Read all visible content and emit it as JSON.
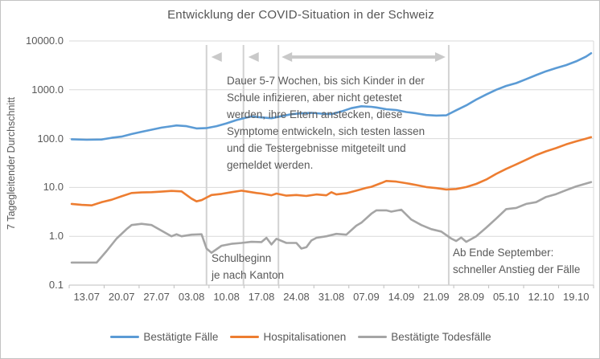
{
  "title": "Entwicklung der COVID-Situation in der Schweiz",
  "y_axis": {
    "title": "7 Tagegleitender Durchschnitt",
    "tick_labels": [
      "10000.0",
      "1000.0",
      "100.0",
      "10.0",
      "1.0",
      "0.1"
    ]
  },
  "x_axis": {
    "tick_labels": [
      "13.07",
      "20.07",
      "27.07",
      "03.08",
      "10.08",
      "17.08",
      "24.08",
      "31.08",
      "07.09",
      "14.09",
      "21.09",
      "28.09",
      "05.10",
      "12.10",
      "19.10"
    ]
  },
  "annotations": {
    "duration_text": "Dauer 5-7 Wochen, bis sich Kinder in der\nSchule infizieren, aber nicht getestet\nwerden, ihre Eltern anstecken, diese\nSymptome entwickeln, sich testen lassen\nund die Testergebnisse mitgeteilt und\ngemeldet werden.",
    "school_start_text": "Schulbeginn\nje nach Kanton",
    "september_text": "Ab Ende September:\nschneller Anstieg der Fälle"
  },
  "colors": {
    "cases": "#5B9BD5",
    "hospitalisations": "#ED7D31",
    "deaths": "#A5A5A5",
    "gridline": "#D9D9D9",
    "axis": "#BFBFBF",
    "marker_line": "#D2D2D2",
    "arrow": "#C9C9C9",
    "text": "#595959"
  },
  "chart_data": {
    "type": "line",
    "title": "Entwicklung der COVID-Situation in der Schweiz",
    "xlabel": "",
    "ylabel": "7 Tagegleitender Durchschnitt",
    "y_scale": "log",
    "ylim": [
      0.1,
      10000
    ],
    "grid": "horizontal",
    "legend_position": "bottom",
    "x_unit": "days since 13.07 (daily data, 13.07 to ~25.10)",
    "x_tick_labels": [
      "13.07",
      "20.07",
      "27.07",
      "03.08",
      "10.08",
      "17.08",
      "24.08",
      "31.08",
      "07.09",
      "14.09",
      "21.09",
      "28.09",
      "05.10",
      "12.10",
      "19.10"
    ],
    "vertical_marker_days": [
      27,
      34.4,
      41.4,
      75.5
    ],
    "series": [
      {
        "name": "Bestätigte Fälle",
        "color": "#5B9BD5",
        "points": [
          [
            0,
            97
          ],
          [
            3,
            95
          ],
          [
            6,
            96
          ],
          [
            8,
            104
          ],
          [
            10,
            110
          ],
          [
            12,
            124
          ],
          [
            14,
            138
          ],
          [
            16,
            152
          ],
          [
            18,
            168
          ],
          [
            20,
            180
          ],
          [
            21,
            186
          ],
          [
            23,
            180
          ],
          [
            25,
            162
          ],
          [
            27,
            164
          ],
          [
            29,
            180
          ],
          [
            31,
            205
          ],
          [
            33,
            240
          ],
          [
            35,
            270
          ],
          [
            36,
            283
          ],
          [
            38,
            272
          ],
          [
            40,
            262
          ],
          [
            42,
            288
          ],
          [
            44,
            316
          ],
          [
            46,
            330
          ],
          [
            48,
            337
          ],
          [
            50,
            325
          ],
          [
            52,
            318
          ],
          [
            54,
            360
          ],
          [
            56,
            420
          ],
          [
            58,
            460
          ],
          [
            60,
            448
          ],
          [
            61,
            435
          ],
          [
            63,
            400
          ],
          [
            65,
            385
          ],
          [
            67,
            350
          ],
          [
            69,
            330
          ],
          [
            71,
            305
          ],
          [
            73,
            297
          ],
          [
            75,
            300
          ],
          [
            77,
            380
          ],
          [
            79,
            480
          ],
          [
            81,
            630
          ],
          [
            83,
            800
          ],
          [
            85,
            1000
          ],
          [
            87,
            1200
          ],
          [
            89,
            1370
          ],
          [
            91,
            1650
          ],
          [
            93,
            2000
          ],
          [
            95,
            2400
          ],
          [
            97,
            2780
          ],
          [
            99,
            3200
          ],
          [
            101,
            3820
          ],
          [
            103,
            4800
          ],
          [
            104,
            5600
          ]
        ]
      },
      {
        "name": "Hospitalisationen",
        "color": "#ED7D31",
        "points": [
          [
            0,
            4.6
          ],
          [
            2,
            4.4
          ],
          [
            4,
            4.3
          ],
          [
            6,
            5.0
          ],
          [
            8,
            5.6
          ],
          [
            10,
            6.6
          ],
          [
            12,
            7.7
          ],
          [
            14,
            7.9
          ],
          [
            16,
            8.0
          ],
          [
            18,
            8.2
          ],
          [
            20,
            8.5
          ],
          [
            22,
            8.3
          ],
          [
            23,
            7.0
          ],
          [
            24,
            5.9
          ],
          [
            25,
            5.2
          ],
          [
            26,
            5.5
          ],
          [
            27,
            6.2
          ],
          [
            28,
            7.0
          ],
          [
            30,
            7.4
          ],
          [
            32,
            8.0
          ],
          [
            34,
            8.6
          ],
          [
            35,
            8.3
          ],
          [
            37,
            7.7
          ],
          [
            38,
            7.5
          ],
          [
            40,
            6.9
          ],
          [
            41,
            7.5
          ],
          [
            43,
            6.8
          ],
          [
            45,
            7.0
          ],
          [
            47,
            6.7
          ],
          [
            49,
            7.2
          ],
          [
            51,
            6.9
          ],
          [
            52,
            8.0
          ],
          [
            53,
            7.2
          ],
          [
            55,
            7.6
          ],
          [
            57,
            8.6
          ],
          [
            59,
            9.8
          ],
          [
            60,
            10.3
          ],
          [
            62,
            12.3
          ],
          [
            63,
            13.6
          ],
          [
            65,
            13.2
          ],
          [
            67,
            12.2
          ],
          [
            69,
            11.2
          ],
          [
            71,
            10.2
          ],
          [
            73,
            9.7
          ],
          [
            75,
            9.1
          ],
          [
            77,
            9.3
          ],
          [
            79,
            10.2
          ],
          [
            81,
            11.8
          ],
          [
            83,
            14.5
          ],
          [
            85,
            19
          ],
          [
            87,
            24
          ],
          [
            89,
            29.6
          ],
          [
            91,
            37
          ],
          [
            93,
            46
          ],
          [
            95,
            55
          ],
          [
            97,
            64
          ],
          [
            99,
            76
          ],
          [
            101,
            88
          ],
          [
            103,
            100
          ],
          [
            104,
            107
          ]
        ]
      },
      {
        "name": "Bestätigte Todesfälle",
        "color": "#A5A5A5",
        "points": [
          [
            0,
            0.29
          ],
          [
            3,
            0.29
          ],
          [
            5,
            0.29
          ],
          [
            7,
            0.5
          ],
          [
            9,
            0.9
          ],
          [
            11,
            1.4
          ],
          [
            12,
            1.7
          ],
          [
            14,
            1.8
          ],
          [
            16,
            1.7
          ],
          [
            18,
            1.3
          ],
          [
            20,
            1.0
          ],
          [
            21,
            1.1
          ],
          [
            22,
            1.0
          ],
          [
            24,
            1.08
          ],
          [
            26,
            1.1
          ],
          [
            27,
            0.56
          ],
          [
            28,
            0.46
          ],
          [
            30,
            0.64
          ],
          [
            32,
            0.7
          ],
          [
            34,
            0.73
          ],
          [
            36,
            0.77
          ],
          [
            38,
            0.76
          ],
          [
            39,
            0.93
          ],
          [
            40,
            0.68
          ],
          [
            41,
            0.89
          ],
          [
            43,
            0.73
          ],
          [
            45,
            0.73
          ],
          [
            46,
            0.56
          ],
          [
            47,
            0.6
          ],
          [
            48,
            0.82
          ],
          [
            49,
            0.93
          ],
          [
            51,
            1.0
          ],
          [
            53,
            1.12
          ],
          [
            55,
            1.08
          ],
          [
            57,
            1.65
          ],
          [
            58,
            1.9
          ],
          [
            60,
            2.9
          ],
          [
            61,
            3.4
          ],
          [
            63,
            3.4
          ],
          [
            64,
            3.2
          ],
          [
            66,
            3.5
          ],
          [
            68,
            2.2
          ],
          [
            70,
            1.7
          ],
          [
            72,
            1.4
          ],
          [
            74,
            1.25
          ],
          [
            76,
            0.9
          ],
          [
            77,
            0.8
          ],
          [
            78,
            0.94
          ],
          [
            79,
            0.77
          ],
          [
            81,
            1.0
          ],
          [
            83,
            1.5
          ],
          [
            85,
            2.3
          ],
          [
            87,
            3.6
          ],
          [
            89,
            3.8
          ],
          [
            91,
            4.6
          ],
          [
            93,
            5.0
          ],
          [
            95,
            6.4
          ],
          [
            97,
            7.3
          ],
          [
            99,
            8.8
          ],
          [
            101,
            10.5
          ],
          [
            104,
            12.9
          ]
        ]
      }
    ]
  }
}
